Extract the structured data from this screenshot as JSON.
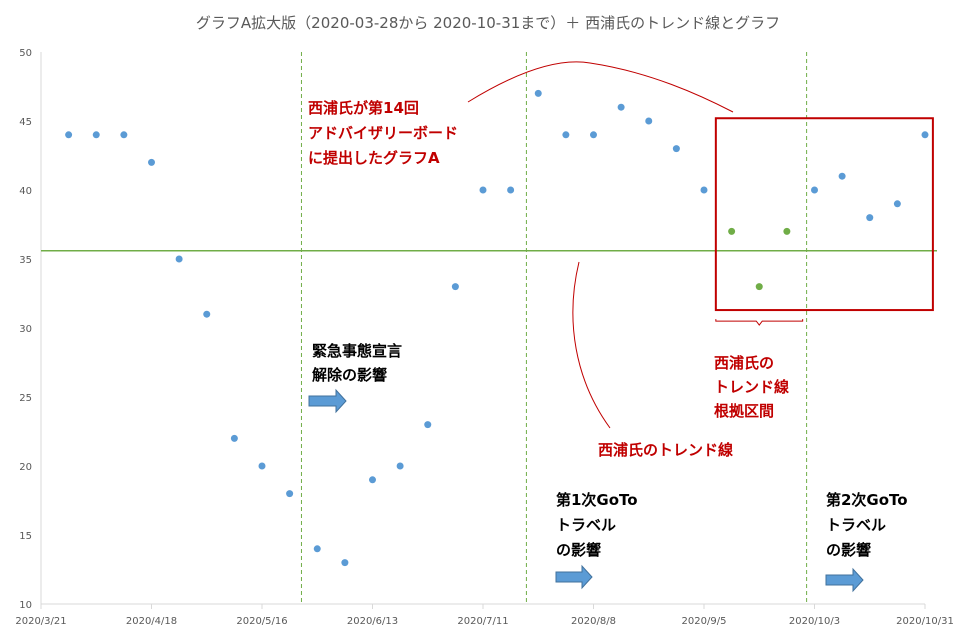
{
  "chart_data": {
    "type": "scatter",
    "title": "グラフA拡大版（2020-03-28から 2020-10-31まで）＋ 西浦氏のトレンド線とグラフ",
    "xlabel": "",
    "ylabel": "",
    "ylim": [
      10,
      50
    ],
    "yticks": [
      10,
      15,
      20,
      25,
      30,
      35,
      40,
      45,
      50
    ],
    "xlim": [
      "2020-03-21",
      "2020-10-31"
    ],
    "xticks": [
      "2020/3/21",
      "2020/4/18",
      "2020/5/16",
      "2020/6/13",
      "2020/7/11",
      "2020/8/8",
      "2020/9/5",
      "2020/10/3",
      "2020/10/31"
    ],
    "grid": false,
    "series": [
      {
        "color": "#5b9bd5",
        "points": [
          {
            "x": "2020-03-28",
            "y": 44
          },
          {
            "x": "2020-04-04",
            "y": 44
          },
          {
            "x": "2020-04-11",
            "y": 44
          },
          {
            "x": "2020-04-18",
            "y": 42
          },
          {
            "x": "2020-04-25",
            "y": 35
          },
          {
            "x": "2020-05-02",
            "y": 31
          },
          {
            "x": "2020-05-09",
            "y": 22
          },
          {
            "x": "2020-05-16",
            "y": 20
          },
          {
            "x": "2020-05-23",
            "y": 18
          },
          {
            "x": "2020-05-30",
            "y": 14
          },
          {
            "x": "2020-06-06",
            "y": 13
          },
          {
            "x": "2020-06-13",
            "y": 19
          },
          {
            "x": "2020-06-20",
            "y": 20
          },
          {
            "x": "2020-06-27",
            "y": 23
          },
          {
            "x": "2020-07-04",
            "y": 33
          },
          {
            "x": "2020-07-11",
            "y": 40
          },
          {
            "x": "2020-07-18",
            "y": 40
          },
          {
            "x": "2020-07-25",
            "y": 47
          },
          {
            "x": "2020-08-01",
            "y": 44
          },
          {
            "x": "2020-08-08",
            "y": 44
          },
          {
            "x": "2020-08-15",
            "y": 46
          },
          {
            "x": "2020-08-22",
            "y": 45
          },
          {
            "x": "2020-08-29",
            "y": 43
          },
          {
            "x": "2020-09-05",
            "y": 40
          },
          {
            "x": "2020-10-03",
            "y": 40
          },
          {
            "x": "2020-10-10",
            "y": 41
          },
          {
            "x": "2020-10-17",
            "y": 38
          },
          {
            "x": "2020-10-24",
            "y": 39
          },
          {
            "x": "2020-10-31",
            "y": 44
          }
        ]
      },
      {
        "color": "#70ad47",
        "points": [
          {
            "x": "2020-09-12",
            "y": 37
          },
          {
            "x": "2020-09-19",
            "y": 33
          },
          {
            "x": "2020-09-26",
            "y": 37
          }
        ]
      }
    ],
    "trend_line": {
      "y": 35.6,
      "color": "#70ad47"
    },
    "event_lines": [
      {
        "x": "2020-05-26",
        "color": "#70ad47"
      },
      {
        "x": "2020-07-22",
        "color": "#70ad47"
      },
      {
        "x": "2020-10-01",
        "color": "#70ad47"
      }
    ],
    "highlight_box": {
      "x": [
        "2020-09-08",
        "2020-11-02"
      ],
      "y": [
        31.3,
        45.2
      ],
      "color": "#c00000"
    },
    "bracket": {
      "x": [
        "2020-09-08",
        "2020-09-30"
      ],
      "y": 30.5
    },
    "annotations": {
      "board": [
        "西浦氏が第14回",
        "アドバイザリーボード",
        "に提出したグラフA"
      ],
      "emergency": [
        "緊急事態宣言",
        "解除の影響"
      ],
      "trend_label": "西浦氏のトレンド線",
      "basis": [
        "西浦氏の",
        "トレンド線",
        "根拠区間"
      ],
      "goto1": [
        "第1次GoTo",
        "トラベル",
        "の影響"
      ],
      "goto2": [
        "第2次GoTo",
        "トラベル",
        "の影響"
      ]
    }
  }
}
